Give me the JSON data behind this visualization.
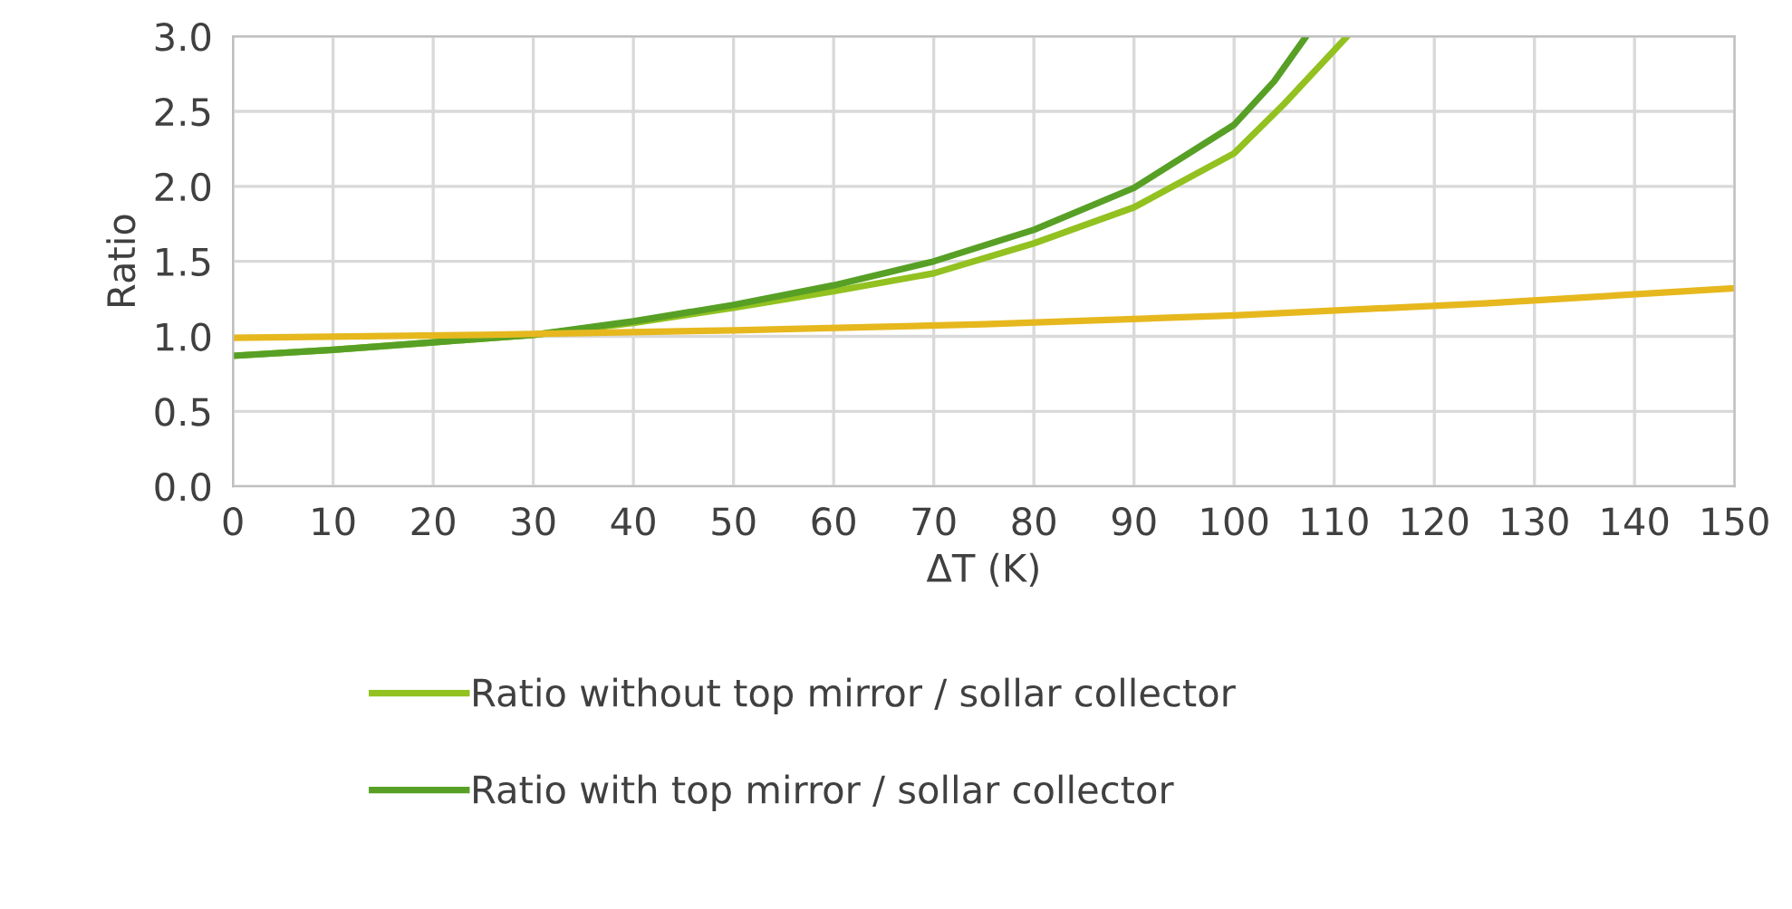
{
  "chart_data": {
    "type": "line",
    "xlabel": "ΔT (K)",
    "ylabel": "Ratio",
    "xlim": [
      0,
      150
    ],
    "xticks": [
      0,
      10,
      20,
      30,
      40,
      50,
      60,
      70,
      80,
      90,
      100,
      110,
      120,
      130,
      140,
      150
    ],
    "ylim": [
      0,
      3.0
    ],
    "yticks": [
      {
        "value": 0,
        "label": "0.0"
      },
      {
        "value": 0.5,
        "label": "0.5"
      },
      {
        "value": 1,
        "label": "1.0"
      },
      {
        "value": 1.5,
        "label": "1.5"
      },
      {
        "value": 2,
        "label": "2.0"
      },
      {
        "value": 2.5,
        "label": "2.5"
      },
      {
        "value": 3,
        "label": "3.0"
      }
    ],
    "grid": true,
    "legend": "bottom",
    "marker": "none",
    "line_style": "solid",
    "series": [
      {
        "name": "Ratio without top mirror / sollar collector",
        "color": "#92c120",
        "x": [
          0,
          10,
          20,
          30,
          40,
          50,
          60,
          70,
          80,
          90,
          100,
          105,
          111.3
        ],
        "values": [
          0.87,
          0.91,
          0.96,
          1.01,
          1.09,
          1.19,
          1.3,
          1.42,
          1.62,
          1.86,
          2.22,
          2.55,
          3.0
        ]
      },
      {
        "name": "Ratio with top mirror / sollar collector",
        "color": "#57a025",
        "x": [
          0,
          10,
          20,
          30,
          40,
          50,
          60,
          70,
          80,
          90,
          100,
          104,
          107.2
        ],
        "values": [
          0.87,
          0.91,
          0.96,
          1.01,
          1.1,
          1.21,
          1.34,
          1.5,
          1.71,
          1.99,
          2.41,
          2.7,
          3.0
        ]
      },
      {
        "color": "#e6b81e",
        "x": [
          0,
          25,
          50,
          75,
          100,
          125,
          150
        ],
        "values": [
          0.99,
          1.01,
          1.04,
          1.08,
          1.14,
          1.22,
          1.32
        ]
      }
    ]
  }
}
